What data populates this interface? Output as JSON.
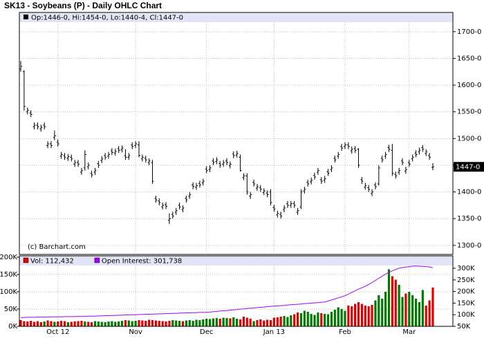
{
  "chart_data": [
    {
      "type": "ohlc",
      "title": "SK13 - Soybeans (P) - Daily OHLC Chart",
      "info_label": "Op:1446-0, Hi:1454-0, Lo:1440-4, Cl:1447-0",
      "last_label": "1447-0",
      "source": "(c) Barchart.com",
      "color": "#000000",
      "grid": true,
      "ylim": [
        1283,
        1736
      ],
      "yticks": [
        {
          "value": 1300,
          "label": "1300-0"
        },
        {
          "value": 1350,
          "label": "1350-0"
        },
        {
          "value": 1400,
          "label": "1400-0"
        },
        {
          "value": 1450,
          "label": "1450-0"
        },
        {
          "value": 1500,
          "label": "1500-0"
        },
        {
          "value": 1550,
          "label": "1550-0"
        },
        {
          "value": 1600,
          "label": "1600-0"
        },
        {
          "value": 1650,
          "label": "1650-0"
        },
        {
          "value": 1700,
          "label": "1700-0"
        }
      ],
      "open": [
        1630,
        1625,
        1550,
        1548,
        1522,
        1525,
        1518,
        1525,
        1487,
        1490,
        1502,
        1493,
        1467,
        1468,
        1463,
        1465,
        1452,
        1455,
        1437,
        1445,
        1447,
        1435,
        1437,
        1453,
        1459,
        1468,
        1467,
        1477,
        1473,
        1481,
        1479,
        1468,
        1465,
        1488,
        1487,
        1488,
        1462,
        1463,
        1455,
        1455,
        1388,
        1383,
        1372,
        1376,
        1347,
        1358,
        1362,
        1375,
        1367,
        1388,
        1392,
        1413,
        1409,
        1416,
        1417,
        1443,
        1442,
        1458,
        1457,
        1453,
        1452,
        1458,
        1449,
        1471,
        1469,
        1465,
        1427,
        1430,
        1392,
        1418,
        1407,
        1408,
        1399,
        1398,
        1400,
        1371,
        1357,
        1358,
        1367,
        1378,
        1375,
        1378,
        1362,
        1372,
        1402,
        1418,
        1419,
        1431,
        1437,
        1423,
        1422,
        1438,
        1442,
        1463,
        1467,
        1485,
        1485,
        1488,
        1477,
        1481,
        1480,
        1423,
        1409,
        1408,
        1397,
        1413,
        1415,
        1463,
        1467,
        1483,
        1478,
        1433,
        1437,
        1458,
        1439,
        1455,
        1462,
        1473,
        1475,
        1483,
        1472,
        1468,
        1446
      ],
      "high": [
        1645,
        1628,
        1558,
        1553,
        1530,
        1530,
        1526,
        1530,
        1495,
        1495,
        1515,
        1498,
        1475,
        1473,
        1471,
        1470,
        1460,
        1460,
        1445,
        1478,
        1455,
        1440,
        1445,
        1458,
        1467,
        1473,
        1475,
        1482,
        1481,
        1486,
        1487,
        1480,
        1473,
        1493,
        1495,
        1495,
        1470,
        1468,
        1463,
        1460,
        1393,
        1388,
        1380,
        1381,
        1360,
        1363,
        1370,
        1380,
        1375,
        1393,
        1400,
        1418,
        1417,
        1421,
        1425,
        1448,
        1450,
        1463,
        1465,
        1458,
        1460,
        1463,
        1457,
        1476,
        1477,
        1470,
        1435,
        1435,
        1400,
        1423,
        1415,
        1413,
        1407,
        1403,
        1405,
        1376,
        1365,
        1363,
        1375,
        1383,
        1383,
        1383,
        1370,
        1405,
        1410,
        1423,
        1427,
        1436,
        1445,
        1428,
        1430,
        1443,
        1450,
        1468,
        1475,
        1490,
        1493,
        1493,
        1485,
        1486,
        1482,
        1428,
        1417,
        1413,
        1405,
        1418,
        1450,
        1468,
        1475,
        1488,
        1490,
        1438,
        1445,
        1463,
        1447,
        1460,
        1470,
        1478,
        1483,
        1488,
        1480,
        1473,
        1454
      ],
      "low": [
        1625,
        1552,
        1545,
        1540,
        1517,
        1517,
        1513,
        1517,
        1482,
        1482,
        1497,
        1485,
        1462,
        1460,
        1458,
        1457,
        1447,
        1447,
        1432,
        1440,
        1442,
        1427,
        1432,
        1445,
        1454,
        1460,
        1462,
        1469,
        1468,
        1473,
        1474,
        1460,
        1460,
        1480,
        1482,
        1465,
        1457,
        1455,
        1450,
        1415,
        1380,
        1375,
        1367,
        1368,
        1340,
        1350,
        1357,
        1367,
        1362,
        1380,
        1387,
        1405,
        1404,
        1408,
        1412,
        1435,
        1437,
        1450,
        1452,
        1445,
        1447,
        1450,
        1444,
        1463,
        1464,
        1438,
        1422,
        1395,
        1387,
        1410,
        1402,
        1400,
        1394,
        1390,
        1375,
        1363,
        1352,
        1350,
        1362,
        1370,
        1370,
        1370,
        1357,
        1368,
        1397,
        1410,
        1414,
        1423,
        1432,
        1415,
        1417,
        1430,
        1437,
        1455,
        1462,
        1477,
        1480,
        1480,
        1472,
        1473,
        1445,
        1415,
        1404,
        1400,
        1392,
        1405,
        1412,
        1455,
        1462,
        1475,
        1430,
        1425,
        1432,
        1450,
        1434,
        1447,
        1457,
        1465,
        1470,
        1475,
        1467,
        1460,
        1440.5
      ],
      "close": [
        1635,
        1560,
        1553,
        1545,
        1525,
        1522,
        1521,
        1522,
        1490,
        1487,
        1505,
        1490,
        1470,
        1465,
        1466,
        1462,
        1455,
        1452,
        1440,
        1470,
        1450,
        1432,
        1440,
        1450,
        1462,
        1465,
        1470,
        1474,
        1476,
        1478,
        1482,
        1465,
        1468,
        1485,
        1490,
        1468,
        1465,
        1460,
        1458,
        1420,
        1385,
        1380,
        1375,
        1373,
        1350,
        1355,
        1365,
        1372,
        1370,
        1385,
        1395,
        1410,
        1412,
        1413,
        1420,
        1440,
        1445,
        1455,
        1460,
        1450,
        1455,
        1455,
        1452,
        1468,
        1472,
        1440,
        1430,
        1400,
        1395,
        1415,
        1410,
        1405,
        1402,
        1395,
        1380,
        1368,
        1360,
        1355,
        1370,
        1375,
        1378,
        1375,
        1365,
        1400,
        1405,
        1415,
        1422,
        1428,
        1440,
        1420,
        1425,
        1435,
        1445,
        1460,
        1470,
        1482,
        1488,
        1485,
        1480,
        1478,
        1450,
        1420,
        1412,
        1405,
        1400,
        1410,
        1445,
        1460,
        1470,
        1480,
        1435,
        1430,
        1440,
        1455,
        1442,
        1452,
        1465,
        1470,
        1478,
        1480,
        1475,
        1465,
        1447
      ]
    },
    {
      "type": "bar",
      "grid": true,
      "categories": [
        null,
        null,
        null,
        null,
        null,
        null,
        null,
        null,
        null,
        null,
        null,
        "Oct 12",
        null,
        null,
        null,
        null,
        null,
        null,
        null,
        null,
        null,
        null,
        null,
        null,
        null,
        null,
        null,
        null,
        null,
        null,
        null,
        null,
        null,
        null,
        "Nov",
        null,
        null,
        null,
        null,
        null,
        null,
        null,
        null,
        null,
        null,
        null,
        null,
        null,
        null,
        null,
        null,
        null,
        null,
        null,
        null,
        "Dec",
        null,
        null,
        null,
        null,
        null,
        null,
        null,
        null,
        null,
        null,
        null,
        null,
        null,
        null,
        null,
        null,
        null,
        null,
        null,
        "Jan 13",
        null,
        null,
        null,
        null,
        null,
        null,
        null,
        null,
        null,
        null,
        null,
        null,
        null,
        null,
        null,
        null,
        null,
        null,
        null,
        null,
        "Feb",
        null,
        null,
        null,
        null,
        null,
        null,
        null,
        null,
        null,
        null,
        null,
        null,
        null,
        null,
        null,
        null,
        null,
        null,
        "Mar",
        null,
        null,
        null,
        null,
        null,
        null,
        null
      ],
      "ylim": [
        0,
        204000
      ],
      "yticks": [
        {
          "value": 0,
          "label": "0K"
        },
        {
          "value": 50000,
          "label": "50K"
        },
        {
          "value": 100000,
          "label": "100K"
        },
        {
          "value": 150000,
          "label": "150K"
        },
        {
          "value": 200000,
          "label": "200K"
        }
      ],
      "y2lim": [
        50000,
        353600
      ],
      "y2ticks": [
        {
          "value": 50000,
          "label": "50K"
        },
        {
          "value": 100000,
          "label": "100K"
        },
        {
          "value": 150000,
          "label": "150K"
        },
        {
          "value": 200000,
          "label": "200K"
        },
        {
          "value": 250000,
          "label": "250K"
        },
        {
          "value": 300000,
          "label": "300K"
        }
      ],
      "series": [
        {
          "name": "Vol: 112,432",
          "color": "#e00000",
          "up_color": "#007a00",
          "values": [
            18000,
            15000,
            14000,
            16000,
            13000,
            15000,
            12000,
            14000,
            17000,
            15000,
            13000,
            14000,
            16000,
            15000,
            12000,
            13000,
            14000,
            15000,
            16000,
            14000,
            13000,
            12000,
            15000,
            14000,
            13000,
            12000,
            14000,
            15000,
            13000,
            14000,
            16000,
            18000,
            17000,
            15000,
            16000,
            18000,
            17000,
            16000,
            19000,
            18000,
            17000,
            16000,
            15000,
            14000,
            16000,
            18000,
            17000,
            16000,
            15000,
            17000,
            18000,
            16000,
            19000,
            18000,
            20000,
            22000,
            21000,
            23000,
            24000,
            22000,
            25000,
            24000,
            23000,
            26000,
            22000,
            20000,
            28000,
            25000,
            22000,
            15000,
            18000,
            20000,
            17000,
            19000,
            18000,
            25000,
            26000,
            28000,
            30000,
            27000,
            32000,
            35000,
            40000,
            38000,
            45000,
            42000,
            36000,
            33000,
            40000,
            38000,
            36000,
            35000,
            42000,
            48000,
            55000,
            50000,
            45000,
            60000,
            58000,
            65000,
            70000,
            65000,
            60000,
            58000,
            62000,
            75000,
            90000,
            80000,
            100000,
            165000,
            145000,
            135000,
            120000,
            85000,
            95000,
            100000,
            90000,
            80000,
            70000,
            105000,
            60000,
            75000,
            112432
          ]
        },
        {
          "name": "Open Interest: 301,738",
          "color": "#a000ff",
          "type": "line",
          "axis": "y2",
          "values": [
            88000,
            88000,
            89000,
            89000,
            89000,
            90000,
            90000,
            90000,
            90000,
            91000,
            91000,
            91000,
            91000,
            92000,
            92000,
            92000,
            92000,
            93000,
            93000,
            93000,
            94000,
            94000,
            94000,
            95000,
            95000,
            96000,
            96000,
            97000,
            97000,
            98000,
            98000,
            99000,
            99000,
            100000,
            100000,
            101000,
            101000,
            102000,
            102000,
            103000,
            103000,
            104000,
            104000,
            105000,
            105000,
            106000,
            106000,
            107000,
            107000,
            108000,
            108000,
            109000,
            109000,
            110000,
            110000,
            110000,
            111000,
            113000,
            114000,
            116000,
            117000,
            118000,
            120000,
            121000,
            122000,
            124000,
            125000,
            127000,
            128000,
            129000,
            131000,
            132000,
            133000,
            135000,
            136000,
            137000,
            138000,
            139000,
            140000,
            142000,
            143000,
            144000,
            145000,
            146000,
            148000,
            149000,
            150000,
            151000,
            152000,
            154000,
            155000,
            159000,
            164000,
            168000,
            173000,
            177000,
            182000,
            189000,
            196000,
            203000,
            210000,
            216000,
            223000,
            230000,
            239000,
            248000,
            257000,
            266000,
            275000,
            282000,
            289000,
            295000,
            300000,
            303000,
            305000,
            307000,
            309000,
            310000,
            309000,
            308000,
            307000,
            306000,
            301738
          ]
        }
      ]
    }
  ]
}
